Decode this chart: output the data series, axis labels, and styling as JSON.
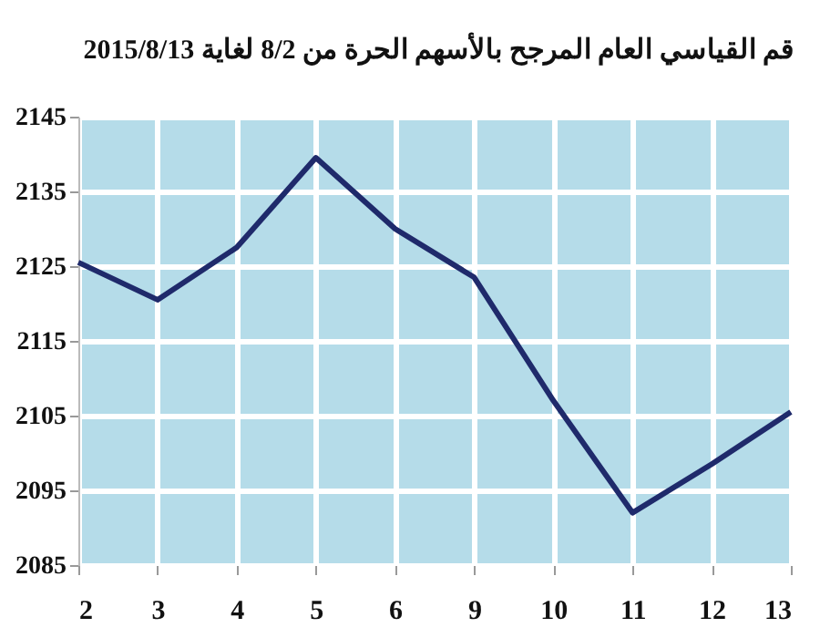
{
  "chart_data": {
    "type": "line",
    "title": "قم القياسي العام المرجح بالأسهم الحرة من 8/2 لغاية 2015/8/13",
    "categories": [
      "2",
      "3",
      "4",
      "5",
      "6",
      "9",
      "10",
      "11",
      "12",
      "13"
    ],
    "series": [
      {
        "color": "#1f2a6b",
        "values": [
          2125.5,
          2120.5,
          2127.5,
          2139.5,
          2130,
          2123.5,
          2107,
          2092,
          2098.5,
          2105.5
        ]
      }
    ],
    "ylim": [
      2085,
      2145
    ],
    "yticks": [
      2085,
      2095,
      2105,
      2115,
      2125,
      2135,
      2145
    ],
    "grid": true,
    "marker": "none",
    "line_style": "solid"
  }
}
